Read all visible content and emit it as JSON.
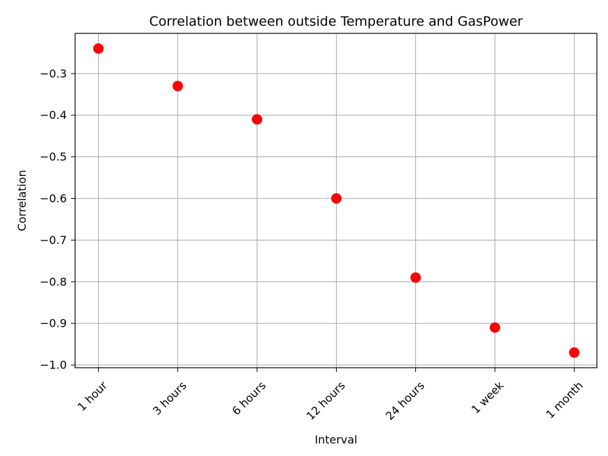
{
  "chart_data": {
    "type": "scatter",
    "title": "Correlation between outside Temperature and GasPower",
    "xlabel": "Interval",
    "ylabel": "Correlation",
    "categories": [
      "1 hour",
      "3 hours",
      "6 hours",
      "12 hours",
      "24 hours",
      "1 week",
      "1 month"
    ],
    "series": [
      {
        "values": [
          -0.24,
          -0.33,
          -0.41,
          -0.6,
          -0.79,
          -0.91,
          -0.97
        ],
        "color": "#ff0000"
      }
    ],
    "yticks": [
      -0.3,
      -0.4,
      -0.5,
      -0.6,
      -0.7,
      -0.8,
      -0.9,
      -1.0
    ],
    "ytick_labels": [
      "−0.3",
      "−0.4",
      "−0.5",
      "−0.6",
      "−0.7",
      "−0.8",
      "−0.9",
      "−1.0"
    ],
    "ylim": [
      -1.0065,
      -0.2035
    ],
    "grid": true,
    "xtick_rotation": "45 degrees"
  }
}
